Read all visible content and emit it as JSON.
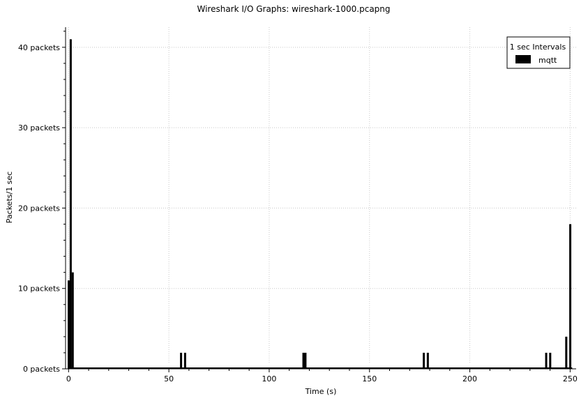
{
  "chart_data": {
    "type": "bar",
    "title": "Wireshark I/O Graphs: wireshark-1000.pcapng",
    "xlabel": "Time (s)",
    "ylabel": "Packets/1 sec",
    "xlim": [
      -1.5,
      253
    ],
    "ylim": [
      0,
      42.5
    ],
    "xticks": [
      0,
      50,
      100,
      150,
      200,
      250
    ],
    "yticks": [
      0,
      10,
      20,
      30,
      40
    ],
    "ytick_labels": [
      "0 packets",
      "10 packets",
      "20 packets",
      "30 packets",
      "40 packets"
    ],
    "grid": true,
    "legend": {
      "title": "1 sec Intervals",
      "position": "top-right"
    },
    "bar_width": 1,
    "series": [
      {
        "name": "mqtt",
        "color": "#000000",
        "x": [
          0,
          1,
          2,
          56,
          58,
          117,
          118,
          177,
          179,
          238,
          240,
          248,
          250
        ],
        "values": [
          11,
          41,
          12,
          2,
          2,
          2,
          2,
          2,
          2,
          2,
          2,
          4,
          18
        ]
      }
    ]
  }
}
